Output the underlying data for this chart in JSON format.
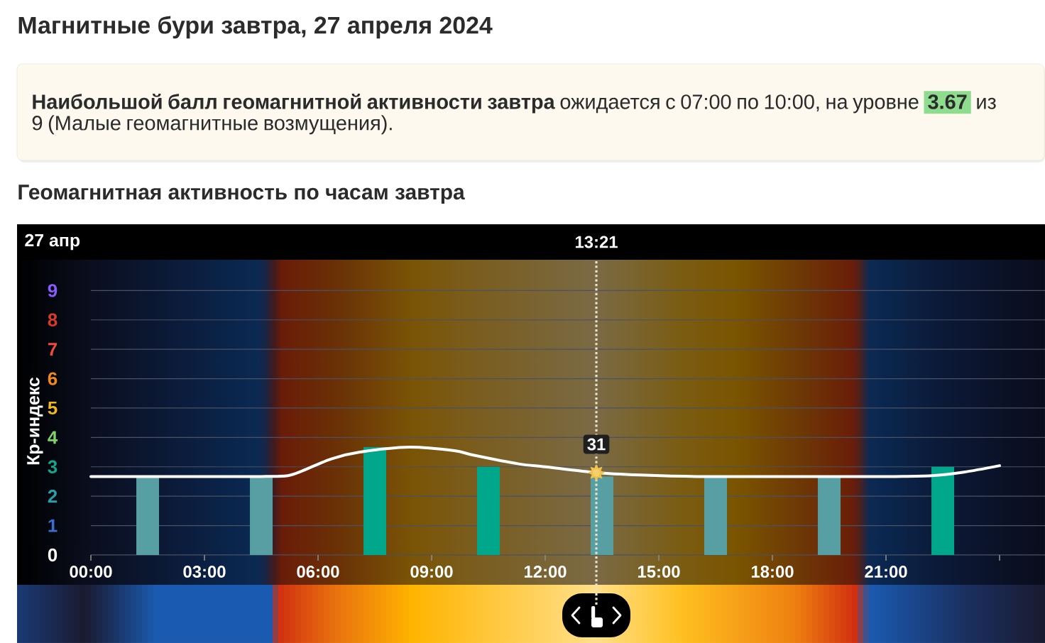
{
  "chart_data": {
    "type": "bar",
    "title": "Магнитные бури завтра, 27 апреля 2024",
    "subtitle": "**Наибольшой балл геомагнитной активности завтра** ожидается с 07:00 по 10:00, на уровне **3.67** из 9 (Малые геомагнитные возмущения).",
    "annotations": [
      "Геомагнитная активность по часам завтра",
      "27 апр",
      {
        "text": "31",
        "x": 13.35,
        "y": 2.8
      }
    ],
    "ylabel": "Кр-индекс",
    "x": [
      1.5,
      4.5,
      7.5,
      10.5,
      13.5,
      16.5,
      19.5,
      22.5
    ],
    "xlim": [
      0,
      25.2
    ],
    "xticks": [
      {
        "value": 0,
        "label": "00:00"
      },
      {
        "value": 3,
        "label": "03:00"
      },
      {
        "value": 6,
        "label": "06:00"
      },
      {
        "value": 9,
        "label": "09:00"
      },
      {
        "value": 12,
        "label": "12:00"
      },
      {
        "value": 15,
        "label": "15:00"
      },
      {
        "value": 18,
        "label": "18:00"
      },
      {
        "value": 21,
        "label": "21:00"
      },
      {
        "value": 24,
        "label": null
      }
    ],
    "ylim": [
      0,
      10
    ],
    "yticks": [
      0,
      1,
      2,
      3,
      4,
      5,
      6,
      7,
      8,
      9
    ],
    "grid": "y",
    "series": [
      {
        "values": [
          2.67,
          2.67,
          3.67,
          3.0,
          2.67,
          2.67,
          2.67,
          3.0
        ],
        "colors": [
          "#579fa3",
          "#579fa3",
          "#00a78a",
          "#00a78a",
          "#579fa3",
          "#579fa3",
          "#579fa3",
          "#00a78a"
        ]
      },
      {
        "type": "line",
        "color": "#ffffff",
        "x": [
          0,
          3,
          4.5,
          5.2,
          5.6,
          6.35,
          7.1,
          8.4,
          9.6,
          10.1,
          11.3,
          12,
          13.35,
          14.5,
          16,
          19,
          21,
          22.2,
          23.06,
          24
        ],
        "values": [
          2.67,
          2.67,
          2.67,
          2.7,
          2.87,
          3.27,
          3.5,
          3.67,
          3.55,
          3.4,
          3.1,
          3.0,
          2.8,
          2.72,
          2.67,
          2.67,
          2.67,
          2.7,
          2.82,
          3.04
        ]
      }
    ],
    "ref_lines": [
      {
        "axis": "x",
        "value": 13.35,
        "label": "13:21",
        "line_style": "dotted"
      }
    ]
  }
}
